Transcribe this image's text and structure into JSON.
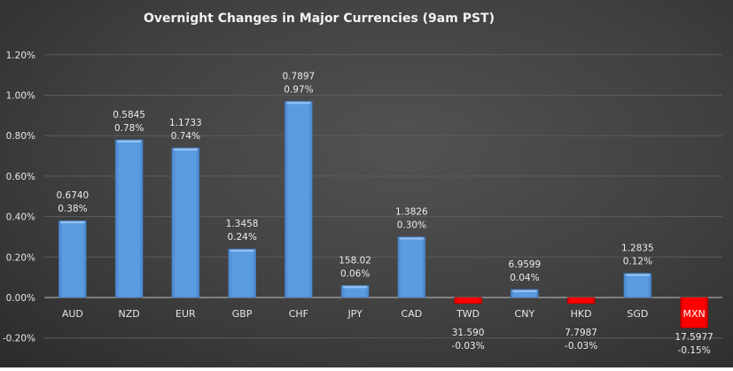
{
  "chart_data": {
    "type": "bar",
    "title": "Overnight Changes in Major Currencies (9am PST)",
    "xlabel": "",
    "ylabel": "",
    "ylim": [
      -0.2,
      1.2
    ],
    "yticks": [
      "1.20%",
      "1.00%",
      "0.80%",
      "0.60%",
      "0.40%",
      "0.20%",
      "0.00%",
      "-0.20%"
    ],
    "ytick_values": [
      1.2,
      1.0,
      0.8,
      0.6,
      0.4,
      0.2,
      0.0,
      -0.2
    ],
    "grid": true,
    "legend": "none",
    "categories": [
      "AUD",
      "NZD",
      "EUR",
      "GBP",
      "CHF",
      "JPY",
      "CAD",
      "TWD",
      "CNY",
      "HKD",
      "SGD",
      "MXN"
    ],
    "values": [
      0.38,
      0.78,
      0.74,
      0.24,
      0.97,
      0.06,
      0.3,
      -0.03,
      0.04,
      -0.03,
      0.12,
      -0.15
    ],
    "rates": [
      "0.6740",
      "0.5845",
      "1.1733",
      "1.3458",
      "0.7897",
      "158.02",
      "1.3826",
      "31.590",
      "6.9599",
      "7.7987",
      "1.2835",
      "17.5977"
    ],
    "percent_labels": [
      "0.38%",
      "0.78%",
      "0.74%",
      "0.24%",
      "0.97%",
      "0.06%",
      "0.30%",
      "-0.03%",
      "0.04%",
      "-0.03%",
      "0.12%",
      "-0.15%"
    ],
    "colors": {
      "positive": "#5b9be0",
      "negative": "#ff0000",
      "gridline": "#5c5c5c",
      "axis": "#bfbfbf"
    }
  }
}
